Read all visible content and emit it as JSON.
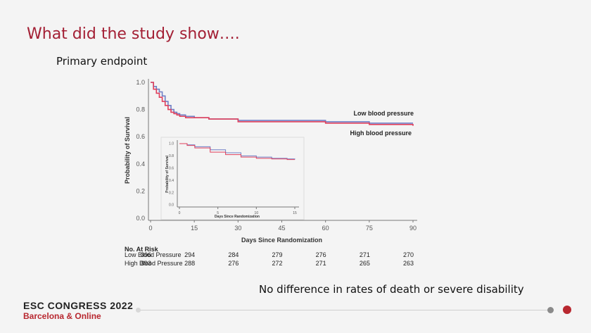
{
  "slide": {
    "title": "What did the study show….",
    "subtitle": "Primary endpoint",
    "conclusion": "No difference in rates of death or severe disability"
  },
  "footer": {
    "brand_line1": "ESC CONGRESS 2022",
    "brand_line2": "Barcelona & Online",
    "colors": {
      "brand_red": "#b8272f",
      "title_red": "#a31f34"
    }
  },
  "chart_data": [
    {
      "type": "line",
      "ylabel": "Probability of Survival",
      "xlabel": "Days Since Randomization",
      "xlim": [
        0,
        90
      ],
      "ylim": [
        0.0,
        1.0
      ],
      "xticks": [
        0,
        15,
        30,
        45,
        60,
        75,
        90
      ],
      "yticks": [
        "0.0",
        "0.2",
        "0.4",
        "0.6",
        "0.8",
        "1.0"
      ],
      "series": [
        {
          "name": "Low blood pressure",
          "color": "#6f7fc6",
          "x": [
            0,
            1,
            2,
            3,
            4,
            5,
            6,
            7,
            8,
            9,
            10,
            12,
            15,
            20,
            30,
            45,
            60,
            75,
            90
          ],
          "y": [
            1.0,
            0.97,
            0.95,
            0.93,
            0.9,
            0.86,
            0.83,
            0.8,
            0.78,
            0.77,
            0.76,
            0.75,
            0.74,
            0.73,
            0.72,
            0.72,
            0.71,
            0.7,
            0.7
          ]
        },
        {
          "name": "High blood pressure",
          "color": "#e0405c",
          "x": [
            0,
            1,
            2,
            3,
            4,
            5,
            6,
            7,
            8,
            9,
            10,
            12,
            15,
            20,
            30,
            45,
            60,
            75,
            90
          ],
          "y": [
            1.0,
            0.95,
            0.92,
            0.89,
            0.86,
            0.83,
            0.8,
            0.78,
            0.77,
            0.76,
            0.75,
            0.74,
            0.74,
            0.73,
            0.71,
            0.71,
            0.7,
            0.69,
            0.68
          ]
        }
      ],
      "legend_labels": [
        "Low blood pressure",
        "High blood pressure"
      ],
      "legend_placement": "right, next to curves",
      "grid": false,
      "risk_table": {
        "header": "No. At Risk",
        "rows": [
          {
            "label": "Low Blood Pressure",
            "values": [
              "396",
              "294",
              "284",
              "279",
              "276",
              "271",
              "270"
            ]
          },
          {
            "label": "High Blood Pressure",
            "values": [
              "393",
              "288",
              "276",
              "272",
              "271",
              "265",
              "263"
            ]
          }
        ]
      }
    },
    {
      "type": "line",
      "inset": true,
      "ylabel": "Probability of Survival",
      "xlabel": "Days Since Randomization",
      "xlim": [
        0,
        15
      ],
      "ylim": [
        0.0,
        1.0
      ],
      "xticks": [
        0,
        5,
        10,
        15
      ],
      "yticks": [
        "0.0",
        "0.2",
        "0.4",
        "0.6",
        "0.8",
        "1.0"
      ],
      "grid": false,
      "series": [
        {
          "color": "#6f7fc6",
          "x": [
            0,
            1,
            2,
            4,
            6,
            8,
            10,
            12,
            14,
            15
          ],
          "y": [
            1.0,
            0.98,
            0.95,
            0.9,
            0.85,
            0.8,
            0.78,
            0.76,
            0.75,
            0.74
          ]
        },
        {
          "color": "#e0405c",
          "x": [
            0,
            1,
            2,
            4,
            6,
            8,
            10,
            12,
            14,
            15
          ],
          "y": [
            1.0,
            0.97,
            0.93,
            0.86,
            0.82,
            0.78,
            0.76,
            0.75,
            0.74,
            0.74
          ]
        }
      ]
    }
  ]
}
